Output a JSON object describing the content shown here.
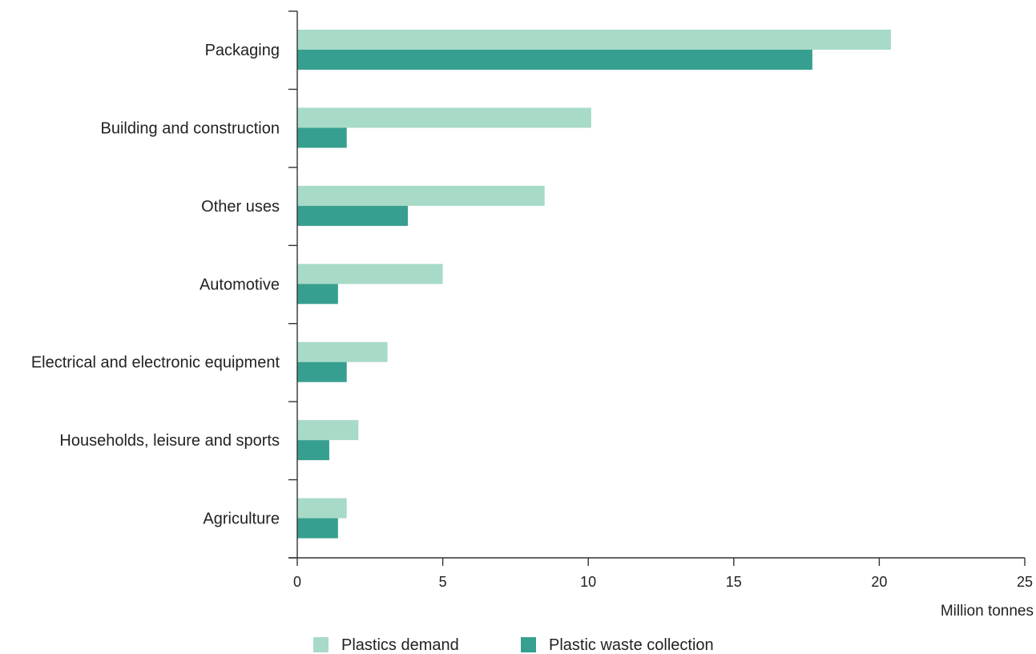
{
  "chart_data": {
    "type": "bar",
    "orientation": "horizontal",
    "categories": [
      "Packaging",
      "Building and construction",
      "Other uses",
      "Automotive",
      "Electrical and electronic equipment",
      "Households, leisure and sports",
      "Agriculture"
    ],
    "series": [
      {
        "name": "Plastics demand",
        "color": "#a8dac8",
        "values": [
          20.4,
          10.1,
          8.5,
          5.0,
          3.1,
          2.1,
          1.7
        ]
      },
      {
        "name": "Plastic waste collection",
        "color": "#379f8f",
        "values": [
          17.7,
          1.7,
          3.8,
          1.4,
          1.7,
          1.1,
          1.4
        ]
      }
    ],
    "xlabel": "Million tonnes",
    "xlim": [
      0,
      25
    ],
    "xticks": [
      0,
      5,
      10,
      15,
      20,
      25
    ],
    "grid": false,
    "legend_position": "bottom"
  }
}
